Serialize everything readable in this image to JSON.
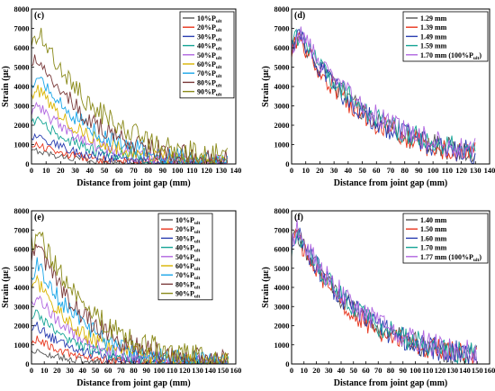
{
  "chart_data": [
    {
      "id": "c",
      "type": "line",
      "panel_label": "(c)",
      "xlabel": "Distance from joint gap (mm)",
      "ylabel": "Strain (με)",
      "xlim": [
        0,
        140
      ],
      "ylim": [
        0,
        8000
      ],
      "xticks": [
        0,
        10,
        20,
        30,
        40,
        50,
        60,
        70,
        80,
        90,
        100,
        110,
        120,
        130,
        140
      ],
      "yticks": [
        0,
        1000,
        2000,
        3000,
        4000,
        5000,
        6000,
        7000,
        8000
      ],
      "legend_position": "top-right",
      "x_end": 135,
      "series": [
        {
          "name": "10%P",
          "sub": "ult",
          "color": "#555555",
          "peak": 700,
          "peak_x": 4,
          "decay": 28
        },
        {
          "name": "20%P",
          "sub": "ult",
          "color": "#e8341c",
          "peak": 1000,
          "peak_x": 4,
          "decay": 30
        },
        {
          "name": "30%P",
          "sub": "ult",
          "color": "#2a3eb1",
          "peak": 1500,
          "peak_x": 4,
          "decay": 32
        },
        {
          "name": "40%P",
          "sub": "ult",
          "color": "#16a596",
          "peak": 2300,
          "peak_x": 4,
          "decay": 34
        },
        {
          "name": "50%P",
          "sub": "ult",
          "color": "#b066e0",
          "peak": 3000,
          "peak_x": 5,
          "decay": 35
        },
        {
          "name": "60%P",
          "sub": "ult",
          "color": "#d8b400",
          "peak": 3800,
          "peak_x": 5,
          "decay": 36
        },
        {
          "name": "70%P",
          "sub": "ult",
          "color": "#1aa6e8",
          "peak": 4700,
          "peak_x": 5,
          "decay": 38
        },
        {
          "name": "80%P",
          "sub": "ult",
          "color": "#7a3a3a",
          "peak": 5600,
          "peak_x": 5,
          "decay": 40
        },
        {
          "name": "90%P",
          "sub": "ult",
          "color": "#8a8a1a",
          "peak": 6800,
          "peak_x": 6,
          "decay": 44
        }
      ]
    },
    {
      "id": "d",
      "type": "line",
      "panel_label": "(d)",
      "xlabel": "Distance from joint gap (mm)",
      "ylabel": "Strain (με)",
      "xlim": [
        0,
        140
      ],
      "ylim": [
        0,
        8000
      ],
      "xticks": [
        0,
        10,
        20,
        30,
        40,
        50,
        60,
        70,
        80,
        90,
        100,
        110,
        120,
        130,
        140
      ],
      "yticks": [
        0,
        1000,
        2000,
        3000,
        4000,
        5000,
        6000,
        7000,
        8000
      ],
      "legend_position": "top-right",
      "x_end": 130,
      "series": [
        {
          "name": "1.29 mm",
          "color": "#555555",
          "peak": 6700,
          "peak_x": 5,
          "decay": 50
        },
        {
          "name": "1.39 mm",
          "color": "#e8341c",
          "peak": 6600,
          "peak_x": 5,
          "decay": 48
        },
        {
          "name": "1.49 mm",
          "color": "#2a3eb1",
          "peak": 6700,
          "peak_x": 5,
          "decay": 50
        },
        {
          "name": "1.59 mm",
          "color": "#16a596",
          "peak": 6800,
          "peak_x": 6,
          "decay": 52
        },
        {
          "name": "1.70 mm (100%P",
          "sub": "ult",
          "suffix": ")",
          "color": "#b066e0",
          "peak": 6800,
          "peak_x": 6,
          "decay": 54
        }
      ]
    },
    {
      "id": "e",
      "type": "line",
      "panel_label": "(e)",
      "xlabel": "Distance from joint gap (mm)",
      "ylabel": "Strain (με)",
      "xlim": [
        0,
        160
      ],
      "ylim": [
        0,
        8000
      ],
      "xticks": [
        0,
        10,
        20,
        30,
        40,
        50,
        60,
        70,
        80,
        90,
        100,
        110,
        120,
        130,
        140,
        150,
        160
      ],
      "yticks": [
        0,
        1000,
        2000,
        3000,
        4000,
        5000,
        6000,
        7000,
        8000
      ],
      "legend_position": "top-right",
      "x_end": 155,
      "series": [
        {
          "name": "10%P",
          "sub": "ult",
          "color": "#555555",
          "peak": 700,
          "peak_x": 4,
          "decay": 28
        },
        {
          "name": "20%P",
          "sub": "ult",
          "color": "#e8341c",
          "peak": 1300,
          "peak_x": 4,
          "decay": 30
        },
        {
          "name": "30%P",
          "sub": "ult",
          "color": "#2a3eb1",
          "peak": 2000,
          "peak_x": 4,
          "decay": 32
        },
        {
          "name": "40%P",
          "sub": "ult",
          "color": "#16a596",
          "peak": 2700,
          "peak_x": 4,
          "decay": 34
        },
        {
          "name": "50%P",
          "sub": "ult",
          "color": "#b066e0",
          "peak": 3500,
          "peak_x": 5,
          "decay": 35
        },
        {
          "name": "60%P",
          "sub": "ult",
          "color": "#d8b400",
          "peak": 4300,
          "peak_x": 5,
          "decay": 36
        },
        {
          "name": "70%P",
          "sub": "ult",
          "color": "#1aa6e8",
          "peak": 5300,
          "peak_x": 5,
          "decay": 38
        },
        {
          "name": "80%P",
          "sub": "ult",
          "color": "#7a3a3a",
          "peak": 6200,
          "peak_x": 5,
          "decay": 40
        },
        {
          "name": "90%P",
          "sub": "ult",
          "color": "#8a8a1a",
          "peak": 7000,
          "peak_x": 5,
          "decay": 44
        }
      ]
    },
    {
      "id": "f",
      "type": "line",
      "panel_label": "(f)",
      "xlabel": "Distance from joint gap (mm)",
      "ylabel": "Strain (με)",
      "xlim": [
        0,
        160
      ],
      "ylim": [
        0,
        8000
      ],
      "xticks": [
        0,
        10,
        20,
        30,
        40,
        50,
        60,
        70,
        80,
        90,
        100,
        110,
        120,
        130,
        140,
        150,
        160
      ],
      "yticks": [
        0,
        1000,
        2000,
        3000,
        4000,
        5000,
        6000,
        7000,
        8000
      ],
      "legend_position": "top-right",
      "x_end": 150,
      "series": [
        {
          "name": "1.40 mm",
          "color": "#555555",
          "peak": 6900,
          "peak_x": 4,
          "decay": 52
        },
        {
          "name": "1.50 mm",
          "color": "#e8341c",
          "peak": 6800,
          "peak_x": 4,
          "decay": 50
        },
        {
          "name": "1.60 mm",
          "color": "#2a3eb1",
          "peak": 7000,
          "peak_x": 4,
          "decay": 52
        },
        {
          "name": "1.70 mm",
          "color": "#16a596",
          "peak": 6900,
          "peak_x": 4,
          "decay": 54
        },
        {
          "name": "1.77 mm (100%P",
          "sub": "ult",
          "suffix": ")",
          "color": "#b066e0",
          "peak": 7100,
          "peak_x": 4,
          "decay": 56
        }
      ]
    }
  ]
}
